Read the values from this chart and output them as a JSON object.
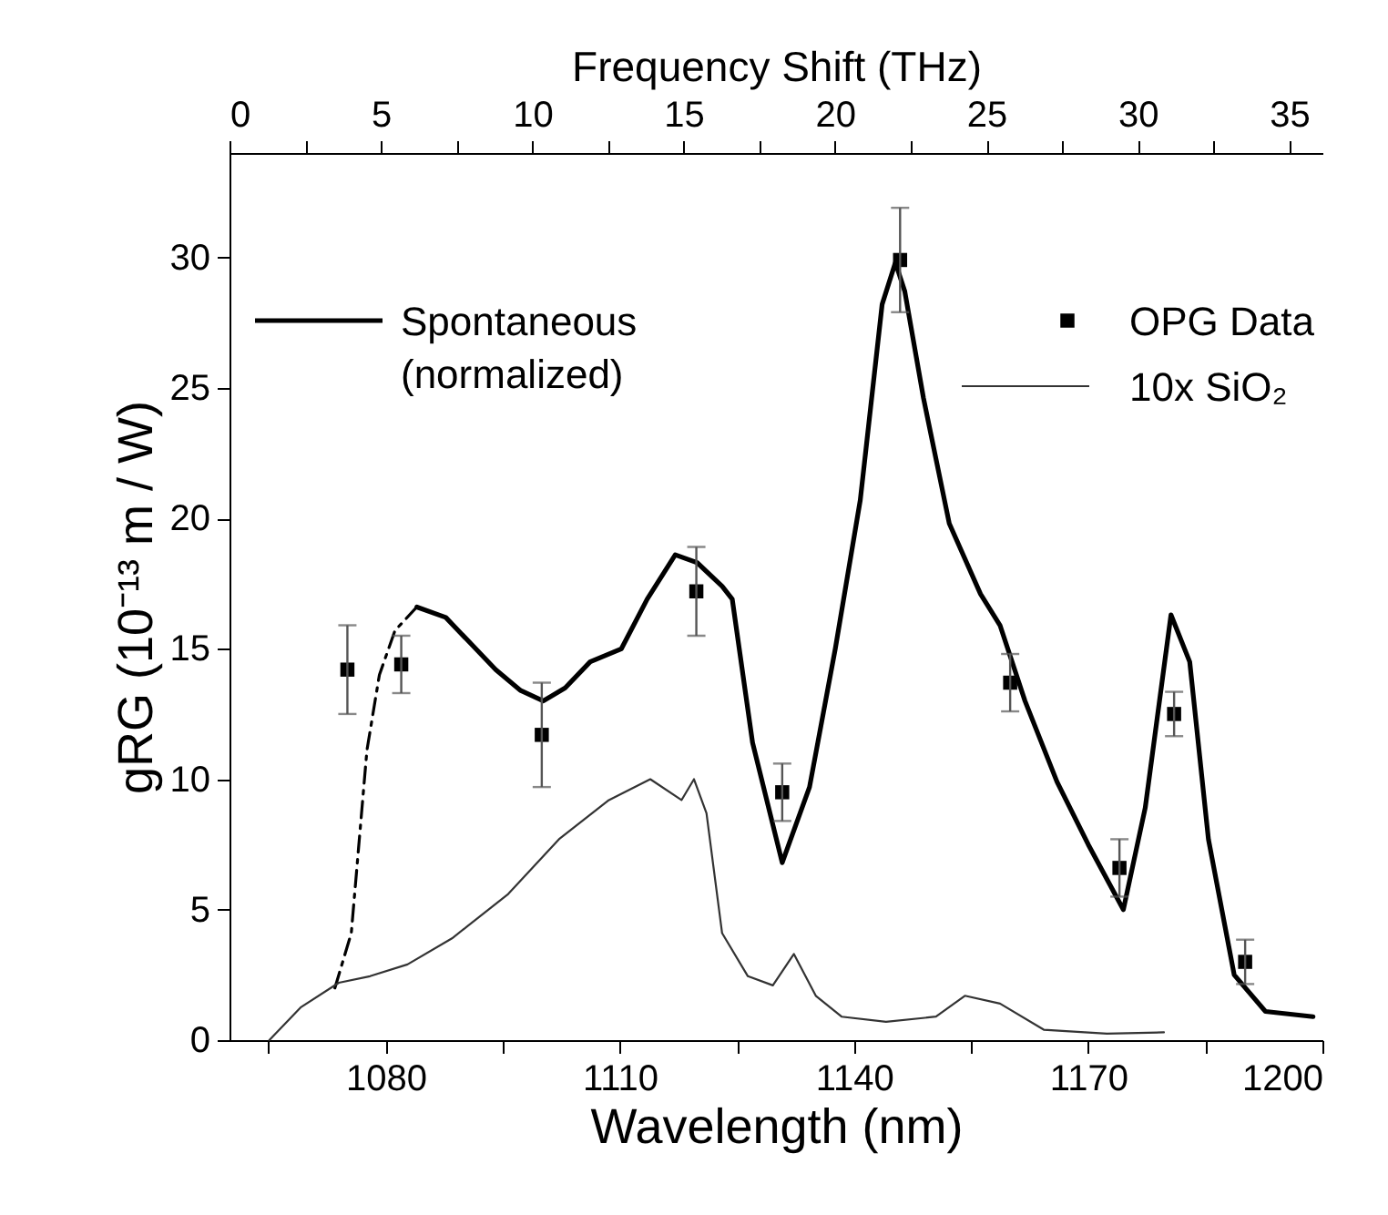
{
  "chart_data": {
    "type": "line",
    "xlabel": "Wavelength (nm)",
    "ylabel": "gRG (10⁻¹³ m / W)",
    "x2label": "Frequency Shift (THz)",
    "xlim": [
      1060,
      1200
    ],
    "xticks": [
      {
        "value": 1065,
        "label": null
      },
      1080,
      {
        "value": 1095,
        "label": null
      },
      1110,
      {
        "value": 1125,
        "label": null
      },
      1140,
      {
        "value": 1155,
        "label": null
      },
      1170,
      {
        "value": 1185,
        "label": null
      },
      1200
    ],
    "ylim": [
      0,
      34
    ],
    "yticks": [
      0,
      5,
      10,
      15,
      20,
      25,
      30
    ],
    "x2lim": [
      0,
      36.1
    ],
    "x2ticks": [
      0,
      {
        "value": 2.5,
        "label": null
      },
      5,
      {
        "value": 7.5,
        "label": null
      },
      10,
      {
        "value": 12.5,
        "label": null
      },
      15,
      {
        "value": 17.5,
        "label": null
      },
      20,
      {
        "value": 22.5,
        "label": null
      },
      25,
      {
        "value": 27.5,
        "label": null
      },
      30,
      {
        "value": 32.5,
        "label": null
      },
      35
    ],
    "grid": false,
    "legend": "top",
    "series": [
      {
        "name": "Spontaneous\n(normalized)",
        "type": "line",
        "color": "#000000",
        "line_style": "solid",
        "x": [
          1084.0,
          1087.7,
          1090.9,
          1094.1,
          1097.3,
          1100.2,
          1103.0,
          1106.2,
          1110.2,
          1113.5,
          1117.1,
          1119.9,
          1123.1,
          1124.4,
          1127.0,
          1130.8,
          1134.3,
          1137.6,
          1140.8,
          1143.6,
          1145.3,
          1146.5,
          1148.9,
          1152.2,
          1156.2,
          1158.7,
          1161.9,
          1166.0,
          1170.0,
          1174.5,
          1177.3,
          1180.6,
          1183.0,
          1185.4,
          1188.7,
          1192.7,
          1198.8
        ],
        "values": [
          16.6,
          16.2,
          15.2,
          14.2,
          13.4,
          13.0,
          13.5,
          14.5,
          15.0,
          16.9,
          18.6,
          18.3,
          17.4,
          16.9,
          11.4,
          6.8,
          9.7,
          15.0,
          20.7,
          28.2,
          29.8,
          28.7,
          24.6,
          19.8,
          17.1,
          15.9,
          13.0,
          9.9,
          7.5,
          5.0,
          8.9,
          16.3,
          14.5,
          7.7,
          2.5,
          1.1,
          0.9
        ]
      },
      {
        "type": "line",
        "color": "#000000",
        "line_style": "dashed",
        "x": [
          1073.5,
          1075.6,
          1077.6,
          1079.2,
          1081.2,
          1084.0
        ],
        "values": [
          2.0,
          4.1,
          11.1,
          14.0,
          15.7,
          16.6
        ]
      },
      {
        "name": "OPG Data",
        "type": "scatter",
        "color": "#000000",
        "marker": "square",
        "x": [
          1075.1,
          1082.0,
          1100.0,
          1119.8,
          1130.8,
          1145.9,
          1160.0,
          1174.0,
          1181.0,
          1190.1
        ],
        "values": [
          14.2,
          14.4,
          11.7,
          17.2,
          9.5,
          29.9,
          13.7,
          6.6,
          12.5,
          3.0
        ],
        "errors": [
          1.7,
          1.1,
          2.0,
          1.7,
          1.1,
          2.0,
          1.1,
          1.1,
          0.85,
          0.85
        ]
      },
      {
        "name": "10x SiO₂",
        "type": "line",
        "color": "#333333",
        "line_style": "solid",
        "x": [
          1065.1,
          1069.1,
          1074.0,
          1078.0,
          1082.8,
          1088.5,
          1095.7,
          1102.2,
          1108.6,
          1113.9,
          1117.9,
          1119.5,
          1121.1,
          1123.1,
          1126.4,
          1129.6,
          1132.3,
          1135.1,
          1138.4,
          1144.1,
          1150.5,
          1154.2,
          1158.7,
          1164.3,
          1172.4,
          1179.7
        ],
        "values": [
          0,
          1.25,
          2.2,
          2.45,
          2.9,
          3.9,
          5.6,
          7.7,
          9.2,
          10.0,
          9.2,
          10.0,
          8.7,
          4.1,
          2.45,
          2.1,
          3.3,
          1.7,
          0.9,
          0.7,
          0.9,
          1.7,
          1.4,
          0.4,
          0.25,
          0.3
        ]
      }
    ]
  }
}
